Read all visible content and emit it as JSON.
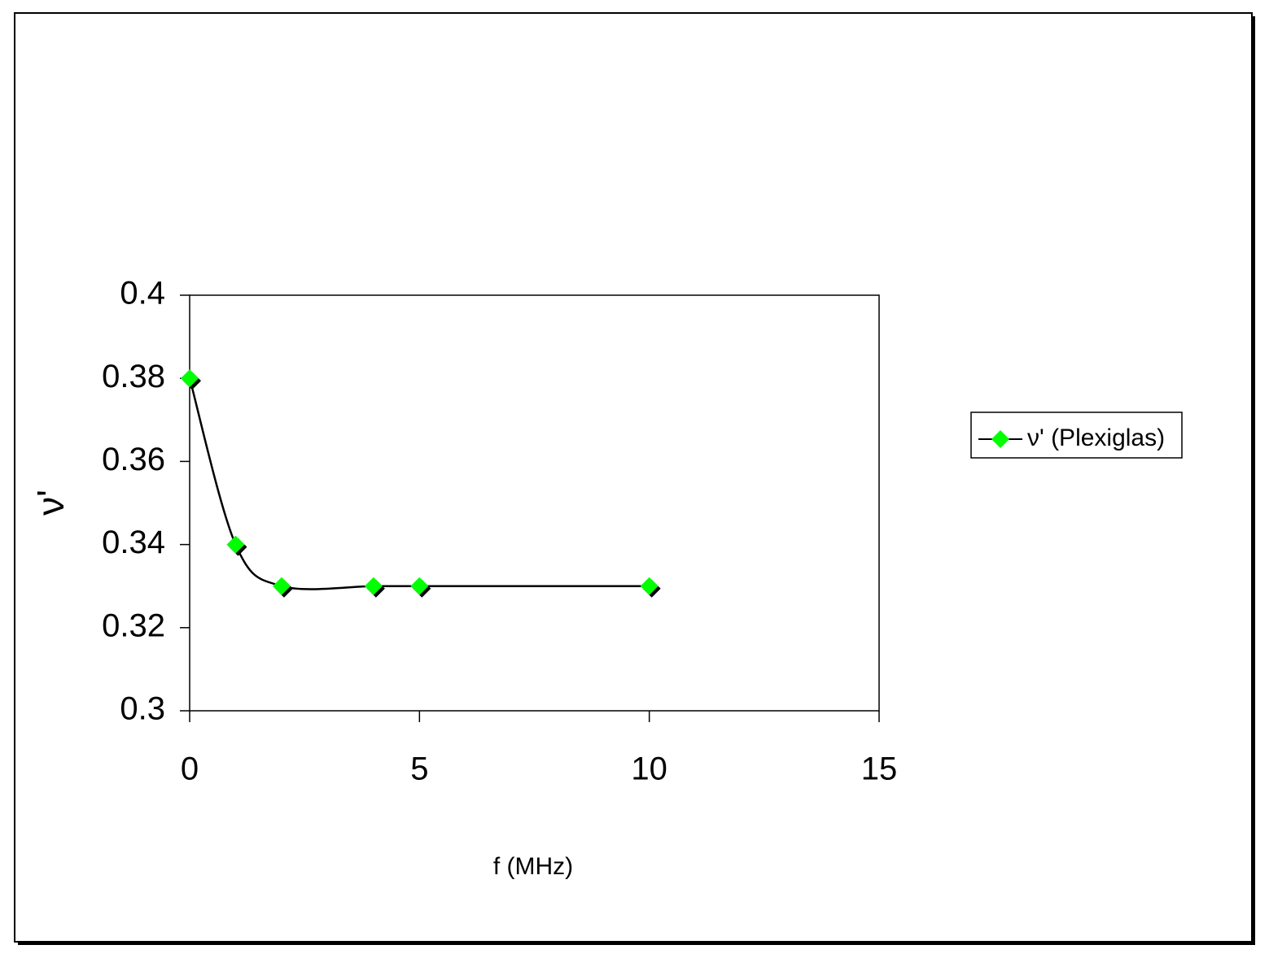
{
  "chart_data": {
    "type": "line",
    "x_label": "f (MHz)",
    "y_label": "ν'",
    "x": [
      0,
      1,
      2,
      4,
      5,
      10
    ],
    "series": [
      {
        "name": "ν' (Plexiglas)",
        "color": "#00ff00",
        "line_color": "#000000",
        "values": [
          0.38,
          0.34,
          0.33,
          0.33,
          0.33,
          0.33
        ]
      }
    ],
    "xlim": [
      0,
      15
    ],
    "xticks": [
      0,
      5,
      10,
      15
    ],
    "ylim": [
      0.3,
      0.4
    ],
    "yticks": [
      0.3,
      0.32,
      0.34,
      0.36,
      0.38,
      0.4
    ],
    "smooth": true,
    "legend": "right"
  }
}
